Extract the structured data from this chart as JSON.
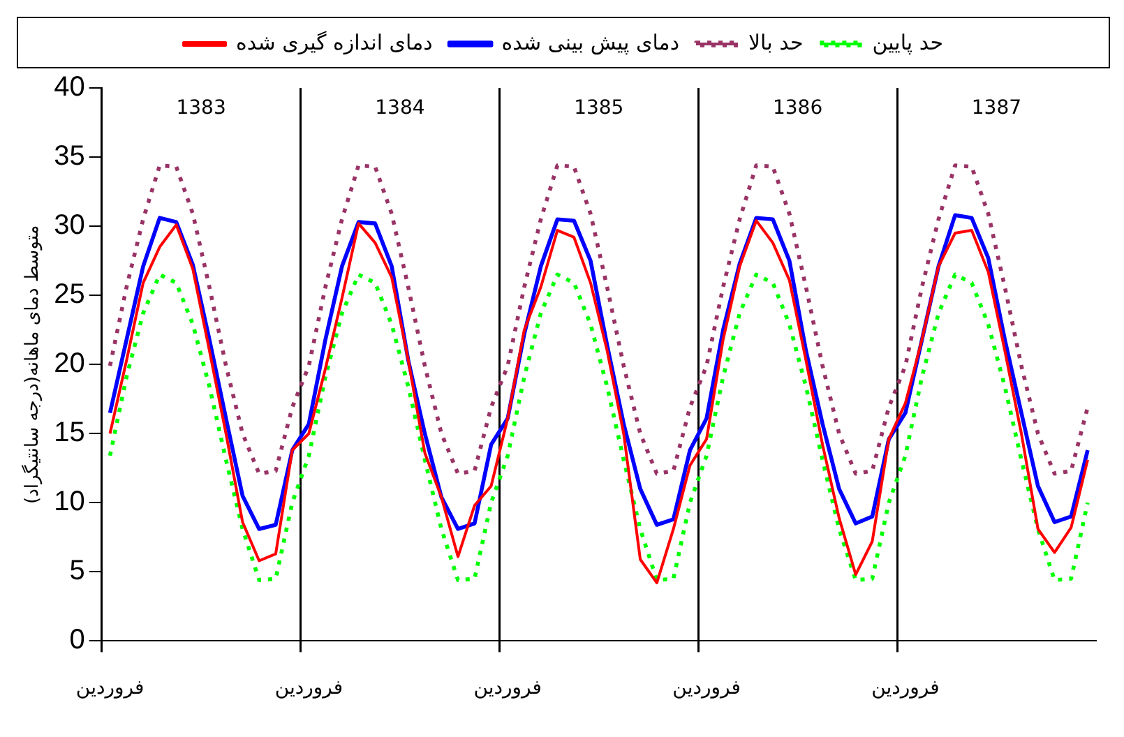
{
  "chart_data": {
    "type": "line",
    "ylabel": "متوسط دمای ماهانه(درجه سانتیگراد)",
    "categories": [
      "فروردین",
      null,
      null,
      null,
      null,
      null,
      null,
      null,
      null,
      null,
      null,
      null,
      "فروردین",
      null,
      null,
      null,
      null,
      null,
      null,
      null,
      null,
      null,
      null,
      null,
      "فروردین",
      null,
      null,
      null,
      null,
      null,
      null,
      null,
      null,
      null,
      null,
      null,
      "فروردین",
      null,
      null,
      null,
      null,
      null,
      null,
      null,
      null,
      null,
      null,
      null,
      "فروردین",
      null,
      null,
      null,
      null,
      null,
      null,
      null,
      null,
      null,
      null,
      null
    ],
    "series": [
      {
        "name": "دمای اندازه گیری شده",
        "color": "#ff0000",
        "line_style": "solid",
        "values": [
          15.0,
          20.3,
          25.9,
          28.5,
          30.1,
          26.9,
          21.0,
          15.0,
          8.6,
          5.8,
          6.3,
          13.8,
          15.0,
          19.7,
          24.8,
          30.2,
          28.8,
          26.3,
          20.3,
          13.6,
          10.4,
          6.1,
          9.8,
          11.2,
          16.1,
          22.5,
          25.6,
          29.7,
          29.2,
          25.9,
          21.0,
          15.0,
          5.9,
          4.2,
          8.1,
          12.7,
          14.6,
          21.8,
          27.1,
          30.4,
          28.8,
          26.1,
          20.3,
          14.2,
          8.9,
          4.8,
          7.2,
          14.6,
          17.2,
          21.8,
          27.1,
          29.5,
          29.7,
          26.7,
          21.0,
          15.0,
          8.1,
          6.4,
          8.2,
          13.1
        ]
      },
      {
        "name": "دمای پیش بینی شده",
        "color": "#0000ff",
        "line_style": "solid",
        "values": [
          16.5,
          21.8,
          27.1,
          30.6,
          30.3,
          27.2,
          21.8,
          16.1,
          10.5,
          8.1,
          8.4,
          13.8,
          15.7,
          21.8,
          27.1,
          30.3,
          30.2,
          27.1,
          20.3,
          15.0,
          10.4,
          8.1,
          8.5,
          14.2,
          16.1,
          22.2,
          27.1,
          30.5,
          30.4,
          27.5,
          21.4,
          15.7,
          11.0,
          8.4,
          8.8,
          13.8,
          16.1,
          22.5,
          27.3,
          30.6,
          30.5,
          27.5,
          21.0,
          15.7,
          11.0,
          8.5,
          9.0,
          14.6,
          16.5,
          21.8,
          27.1,
          30.8,
          30.6,
          27.7,
          21.8,
          16.5,
          11.2,
          8.6,
          9.0,
          13.8
        ]
      },
      {
        "name": "حد بالا",
        "color": "#993366",
        "line_style": "dotted",
        "values": [
          19.9,
          25.6,
          30.5,
          34.4,
          34.3,
          30.9,
          25.6,
          19.9,
          15.0,
          12.1,
          12.3,
          16.9,
          19.9,
          25.6,
          30.5,
          34.4,
          34.3,
          30.9,
          25.6,
          19.9,
          15.0,
          12.1,
          12.3,
          16.9,
          19.9,
          25.6,
          30.5,
          34.4,
          34.3,
          30.9,
          25.6,
          19.9,
          15.0,
          12.1,
          12.3,
          16.9,
          19.9,
          25.6,
          30.5,
          34.4,
          34.3,
          30.9,
          25.6,
          19.9,
          15.0,
          12.1,
          12.3,
          16.9,
          19.9,
          25.6,
          30.5,
          34.4,
          34.3,
          30.9,
          25.6,
          19.9,
          15.0,
          12.1,
          12.3,
          16.9
        ]
      },
      {
        "name": "حد پایین",
        "color": "#00ff00",
        "line_style": "dotted",
        "values": [
          13.4,
          19.1,
          23.7,
          26.5,
          25.9,
          22.9,
          18.4,
          13.1,
          8.1,
          4.4,
          4.5,
          10.0,
          13.4,
          19.1,
          23.7,
          26.5,
          25.9,
          22.9,
          18.4,
          13.1,
          8.1,
          4.4,
          4.5,
          10.0,
          13.4,
          19.1,
          23.7,
          26.5,
          25.9,
          22.9,
          18.4,
          13.1,
          8.1,
          4.4,
          4.5,
          10.0,
          13.4,
          19.1,
          23.7,
          26.5,
          25.9,
          22.9,
          18.4,
          13.1,
          8.1,
          4.4,
          4.5,
          10.0,
          13.4,
          19.1,
          23.7,
          26.5,
          25.9,
          22.9,
          18.4,
          13.1,
          8.1,
          4.4,
          4.5,
          10.0
        ]
      }
    ],
    "ylim": [
      0,
      40
    ],
    "yticks": [
      0,
      5,
      10,
      15,
      20,
      25,
      30,
      35,
      40
    ],
    "grid": "x",
    "legend": "top",
    "marker": "none",
    "annotations": [
      "1383",
      "1384",
      "1385",
      "1386",
      "1387"
    ]
  }
}
